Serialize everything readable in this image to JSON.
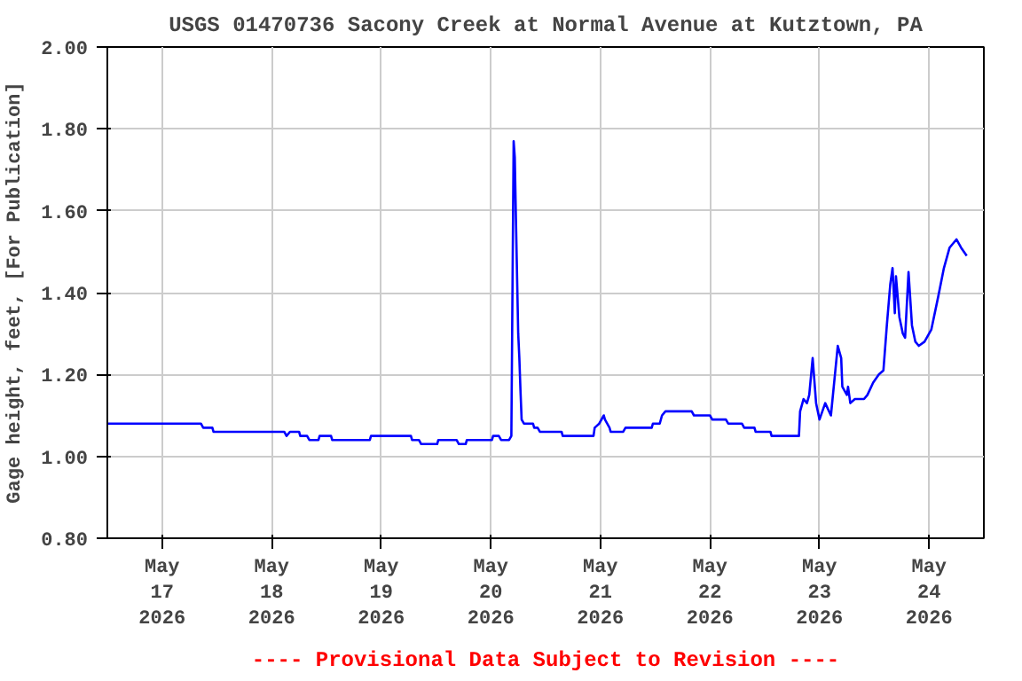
{
  "chart_data": {
    "type": "line",
    "title": "USGS 01470736 Sacony Creek at Normal Avenue at Kutztown, PA",
    "ylabel": "Gage height, feet, [For Publication]",
    "annotations": [
      "---- Provisional Data Subject to Revision ----"
    ],
    "xlim": [
      "2026-05-16T12:00",
      "2026-05-24T12:00"
    ],
    "xticks": [
      {
        "value": "2026-05-17",
        "label": "May\n17\n2026"
      },
      {
        "value": "2026-05-18",
        "label": "May\n18\n2026"
      },
      {
        "value": "2026-05-19",
        "label": "May\n19\n2026"
      },
      {
        "value": "2026-05-20",
        "label": "May\n20\n2026"
      },
      {
        "value": "2026-05-21",
        "label": "May\n21\n2026"
      },
      {
        "value": "2026-05-22",
        "label": "May\n22\n2026"
      },
      {
        "value": "2026-05-23",
        "label": "May\n23\n2026"
      },
      {
        "value": "2026-05-24",
        "label": "May\n24\n2026"
      }
    ],
    "ylim": [
      0.8,
      2.0
    ],
    "yticks": [
      {
        "value": 0.8,
        "label": "0.80"
      },
      {
        "value": 1.0,
        "label": "1.00"
      },
      {
        "value": 1.2,
        "label": "1.20"
      },
      {
        "value": 1.4,
        "label": "1.40"
      },
      {
        "value": 1.6,
        "label": "1.60"
      },
      {
        "value": 1.8,
        "label": "1.80"
      },
      {
        "value": 2.0,
        "label": "2.00"
      }
    ],
    "grid": true,
    "marker": "none",
    "line_style": "solid",
    "series": [
      {
        "color": "#0000ff",
        "x": [
          "2026-05-16T12:00",
          "2026-05-17T08:30",
          "2026-05-17T09:00",
          "2026-05-17T11:00",
          "2026-05-17T11:15",
          "2026-05-18T02:45",
          "2026-05-18T03:15",
          "2026-05-18T04:00",
          "2026-05-18T06:00",
          "2026-05-18T06:15",
          "2026-05-18T07:45",
          "2026-05-18T08:15",
          "2026-05-18T10:15",
          "2026-05-18T10:30",
          "2026-05-18T13:00",
          "2026-05-18T13:15",
          "2026-05-18T21:30",
          "2026-05-18T21:45",
          "2026-05-19T01:00",
          "2026-05-19T01:15",
          "2026-05-19T06:30",
          "2026-05-19T06:45",
          "2026-05-19T08:15",
          "2026-05-19T08:45",
          "2026-05-19T12:15",
          "2026-05-19T12:30",
          "2026-05-19T16:30",
          "2026-05-19T17:00",
          "2026-05-19T18:30",
          "2026-05-19T18:45",
          "2026-05-20T00:15",
          "2026-05-20T00:30",
          "2026-05-20T01:45",
          "2026-05-20T02:15",
          "2026-05-20T04:00",
          "2026-05-20T04:30",
          "2026-05-20T05:00",
          "2026-05-20T05:15",
          "2026-05-20T05:30",
          "2026-05-20T06:00",
          "2026-05-20T06:15",
          "2026-05-20T06:30",
          "2026-05-20T06:45",
          "2026-05-20T07:15",
          "2026-05-20T09:15",
          "2026-05-20T09:30",
          "2026-05-20T10:15",
          "2026-05-20T10:45",
          "2026-05-20T15:30",
          "2026-05-20T15:45",
          "2026-05-20T22:30",
          "2026-05-20T22:45",
          "2026-05-20T23:45",
          "2026-05-21T00:45",
          "2026-05-21T01:00",
          "2026-05-21T02:00",
          "2026-05-21T02:15",
          "2026-05-21T05:00",
          "2026-05-21T05:30",
          "2026-05-21T11:15",
          "2026-05-21T11:30",
          "2026-05-21T13:00",
          "2026-05-21T13:30",
          "2026-05-21T14:15",
          "2026-05-21T20:00",
          "2026-05-21T20:30",
          "2026-05-22T00:00",
          "2026-05-22T00:30",
          "2026-05-22T03:30",
          "2026-05-22T04:00",
          "2026-05-22T07:00",
          "2026-05-22T07:30",
          "2026-05-22T09:45",
          "2026-05-22T10:00",
          "2026-05-22T13:15",
          "2026-05-22T13:30",
          "2026-05-22T19:30",
          "2026-05-22T19:45",
          "2026-05-22T20:30",
          "2026-05-22T21:15",
          "2026-05-22T21:45",
          "2026-05-22T22:30",
          "2026-05-22T23:15",
          "2026-05-23T00:00",
          "2026-05-23T01:15",
          "2026-05-23T02:30",
          "2026-05-23T04:00",
          "2026-05-23T04:45",
          "2026-05-23T05:00",
          "2026-05-23T06:00",
          "2026-05-23T06:15",
          "2026-05-23T06:45",
          "2026-05-23T07:45",
          "2026-05-23T09:45",
          "2026-05-23T10:30",
          "2026-05-23T11:45",
          "2026-05-23T13:00",
          "2026-05-23T14:00",
          "2026-05-23T14:45",
          "2026-05-23T15:30",
          "2026-05-23T16:00",
          "2026-05-23T16:30",
          "2026-05-23T16:45",
          "2026-05-23T17:30",
          "2026-05-23T18:15",
          "2026-05-23T18:45",
          "2026-05-23T19:30",
          "2026-05-23T20:15",
          "2026-05-23T21:00",
          "2026-05-23T21:45",
          "2026-05-23T23:00",
          "2026-05-24T00:30",
          "2026-05-24T02:00",
          "2026-05-24T03:15",
          "2026-05-24T04:30",
          "2026-05-24T06:00",
          "2026-05-24T07:00",
          "2026-05-24T08:15"
        ],
        "values": [
          1.08,
          1.08,
          1.07,
          1.07,
          1.06,
          1.06,
          1.05,
          1.06,
          1.06,
          1.05,
          1.05,
          1.04,
          1.04,
          1.05,
          1.05,
          1.04,
          1.04,
          1.05,
          1.05,
          1.05,
          1.05,
          1.04,
          1.04,
          1.03,
          1.03,
          1.04,
          1.04,
          1.03,
          1.03,
          1.04,
          1.04,
          1.05,
          1.05,
          1.04,
          1.04,
          1.05,
          1.77,
          1.73,
          1.58,
          1.3,
          1.24,
          1.16,
          1.09,
          1.08,
          1.08,
          1.07,
          1.07,
          1.06,
          1.06,
          1.05,
          1.05,
          1.07,
          1.08,
          1.1,
          1.09,
          1.07,
          1.06,
          1.06,
          1.07,
          1.07,
          1.08,
          1.08,
          1.1,
          1.11,
          1.11,
          1.1,
          1.1,
          1.09,
          1.09,
          1.08,
          1.08,
          1.07,
          1.07,
          1.06,
          1.06,
          1.05,
          1.05,
          1.11,
          1.14,
          1.13,
          1.15,
          1.24,
          1.13,
          1.09,
          1.13,
          1.1,
          1.27,
          1.24,
          1.17,
          1.15,
          1.17,
          1.13,
          1.14,
          1.14,
          1.15,
          1.18,
          1.2,
          1.21,
          1.32,
          1.42,
          1.46,
          1.35,
          1.44,
          1.34,
          1.3,
          1.29,
          1.45,
          1.32,
          1.28,
          1.27,
          1.28,
          1.31,
          1.39,
          1.46,
          1.51,
          1.53,
          1.51,
          1.49
        ]
      }
    ]
  }
}
